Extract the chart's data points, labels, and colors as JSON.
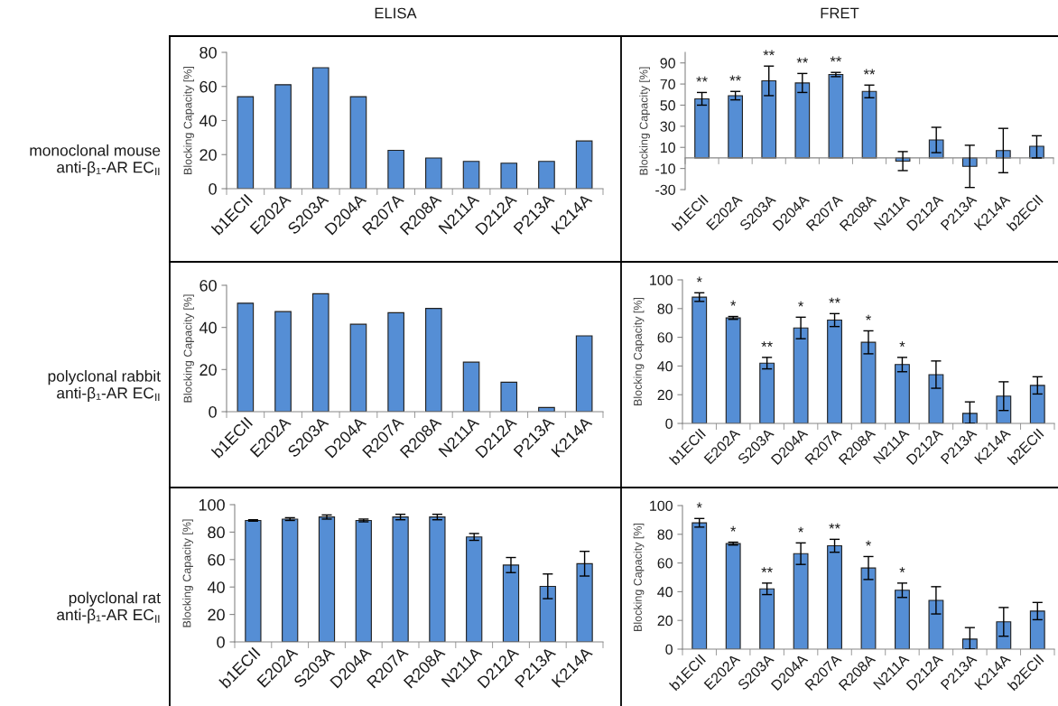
{
  "chart_data": [
    {
      "type": "bar",
      "title": "ELISA",
      "ylabel": "Blocking Capacity [%]",
      "categories": [
        "b1ECII",
        "E202A",
        "S203A",
        "D204A",
        "R207A",
        "R208A",
        "N211A",
        "D212A",
        "P213A",
        "K214A"
      ],
      "values": [
        54,
        61,
        71,
        54,
        22.5,
        18,
        16,
        15,
        16,
        28
      ],
      "color": "#558ed5",
      "ylim": [
        0,
        80
      ],
      "yticks": [
        0,
        20,
        40,
        60,
        80
      ],
      "annotations": [
        "monoclonal mouse\nanti-β₁-AR EC$_{II}$"
      ]
    },
    {
      "type": "bar",
      "title": "FRET",
      "ylabel": "Blocking Capacity [%]",
      "categories": [
        "b1ECII",
        "E202A",
        "S203A",
        "D204A",
        "R207A",
        "R208A",
        "N211A",
        "D212A",
        "P213A",
        "K214A",
        "b2ECII"
      ],
      "values": [
        56,
        59,
        73,
        71,
        79,
        63,
        -3,
        17,
        -8,
        7,
        11
      ],
      "errors": [
        6,
        4,
        14,
        9,
        2,
        6,
        9,
        12,
        20,
        21,
        [
          0,
          21
        ]
      ],
      "color": "#558ed5",
      "ylim": [
        -30,
        100
      ],
      "yticks": [
        -30,
        -10,
        10,
        30,
        50,
        70,
        90
      ],
      "annotations": [
        {
          "text": "**",
          "x": "b1ECII",
          "y": 62
        },
        {
          "text": "**",
          "x": "E202A",
          "y": 63
        },
        {
          "text": "**",
          "x": "S203A",
          "y": 87
        },
        {
          "text": "**",
          "x": "D204A",
          "y": 80
        },
        {
          "text": "**",
          "x": "R207A",
          "y": 81
        },
        {
          "text": "**",
          "x": "R208A",
          "y": 69
        }
      ]
    },
    {
      "type": "bar",
      "ylabel": "Blocking Capacity [%]",
      "categories": [
        "b1ECII",
        "E202A",
        "S203A",
        "D204A",
        "R207A",
        "R208A",
        "N211A",
        "D212A",
        "P213A",
        "K214A"
      ],
      "values": [
        51.5,
        47.5,
        56,
        41.5,
        47,
        49,
        23.5,
        14,
        2,
        36
      ],
      "color": "#558ed5",
      "ylim": [
        0,
        60
      ],
      "yticks": [
        0,
        20,
        40,
        60
      ],
      "annotations": [
        "polyclonal rabbit\nanti-β₁-AR EC$_{II}$"
      ]
    },
    {
      "type": "bar",
      "ylabel": "Blocking Capacity [%]",
      "categories": [
        "b1ECII",
        "E202A",
        "S203A",
        "D204A",
        "R207A",
        "R208A",
        "N211A",
        "D212A",
        "P213A",
        "K214A",
        "b2ECII"
      ],
      "values": [
        88,
        73.5,
        42,
        66.5,
        72,
        56.5,
        41,
        34,
        7,
        19,
        26.5
      ],
      "errors": [
        3,
        1,
        4,
        7.5,
        4.5,
        8,
        5,
        9.5,
        [
          0,
          15
        ],
        10,
        6
      ],
      "color": "#558ed5",
      "ylim": [
        0,
        100
      ],
      "yticks": [
        0,
        20,
        40,
        60,
        80,
        100
      ],
      "annotations": [
        {
          "text": "*",
          "x": "b1ECII",
          "y": 91
        },
        {
          "text": "*",
          "x": "E202A",
          "y": 74.5
        },
        {
          "text": "**",
          "x": "S203A",
          "y": 46
        },
        {
          "text": "*",
          "x": "D204A",
          "y": 74
        },
        {
          "text": "**",
          "x": "R207A",
          "y": 76.5
        },
        {
          "text": "*",
          "x": "R208A",
          "y": 64.5
        },
        {
          "text": "*",
          "x": "N211A",
          "y": 46
        }
      ]
    },
    {
      "type": "bar",
      "ylabel": "Blocking Capacity [%]",
      "categories": [
        "b1ECII",
        "E202A",
        "S203A",
        "D204A",
        "R207A",
        "R208A",
        "N211A",
        "D212A",
        "P213A",
        "K214A"
      ],
      "values": [
        88.5,
        89.5,
        91,
        88.5,
        91,
        91,
        76.5,
        56,
        40.5,
        57
      ],
      "errors": [
        0.5,
        1,
        1.5,
        1,
        2,
        2,
        2.5,
        5.5,
        9,
        9
      ],
      "color": "#558ed5",
      "ylim": [
        0,
        100
      ],
      "yticks": [
        0,
        20,
        40,
        60,
        80,
        100
      ],
      "annotations": [
        "polyclonal rat\nanti-β₁-AR EC$_{II}$"
      ]
    },
    {
      "type": "bar",
      "ylabel": "Blocking Capacity [%]",
      "categories": [
        "b1ECII",
        "E202A",
        "S203A",
        "D204A",
        "R207A",
        "R208A",
        "N211A",
        "D212A",
        "P213A",
        "K214A",
        "b2ECII"
      ],
      "values": [
        88,
        73.5,
        42,
        66.5,
        72,
        56.5,
        41,
        34,
        7,
        19,
        26.5
      ],
      "errors": [
        3,
        1,
        4,
        7.5,
        4.5,
        8,
        5,
        9.5,
        [
          0,
          15
        ],
        10,
        6
      ],
      "color": "#558ed5",
      "ylim": [
        0,
        100
      ],
      "yticks": [
        0,
        20,
        40,
        60,
        80,
        100
      ],
      "annotations": [
        {
          "text": "*",
          "x": "b1ECII",
          "y": 91
        },
        {
          "text": "*",
          "x": "E202A",
          "y": 74.5
        },
        {
          "text": "**",
          "x": "S203A",
          "y": 46
        },
        {
          "text": "*",
          "x": "D204A",
          "y": 74
        },
        {
          "text": "**",
          "x": "R207A",
          "y": 76.5
        },
        {
          "text": "*",
          "x": "R208A",
          "y": 64.5
        },
        {
          "text": "*",
          "x": "N211A",
          "y": 46
        }
      ]
    }
  ]
}
